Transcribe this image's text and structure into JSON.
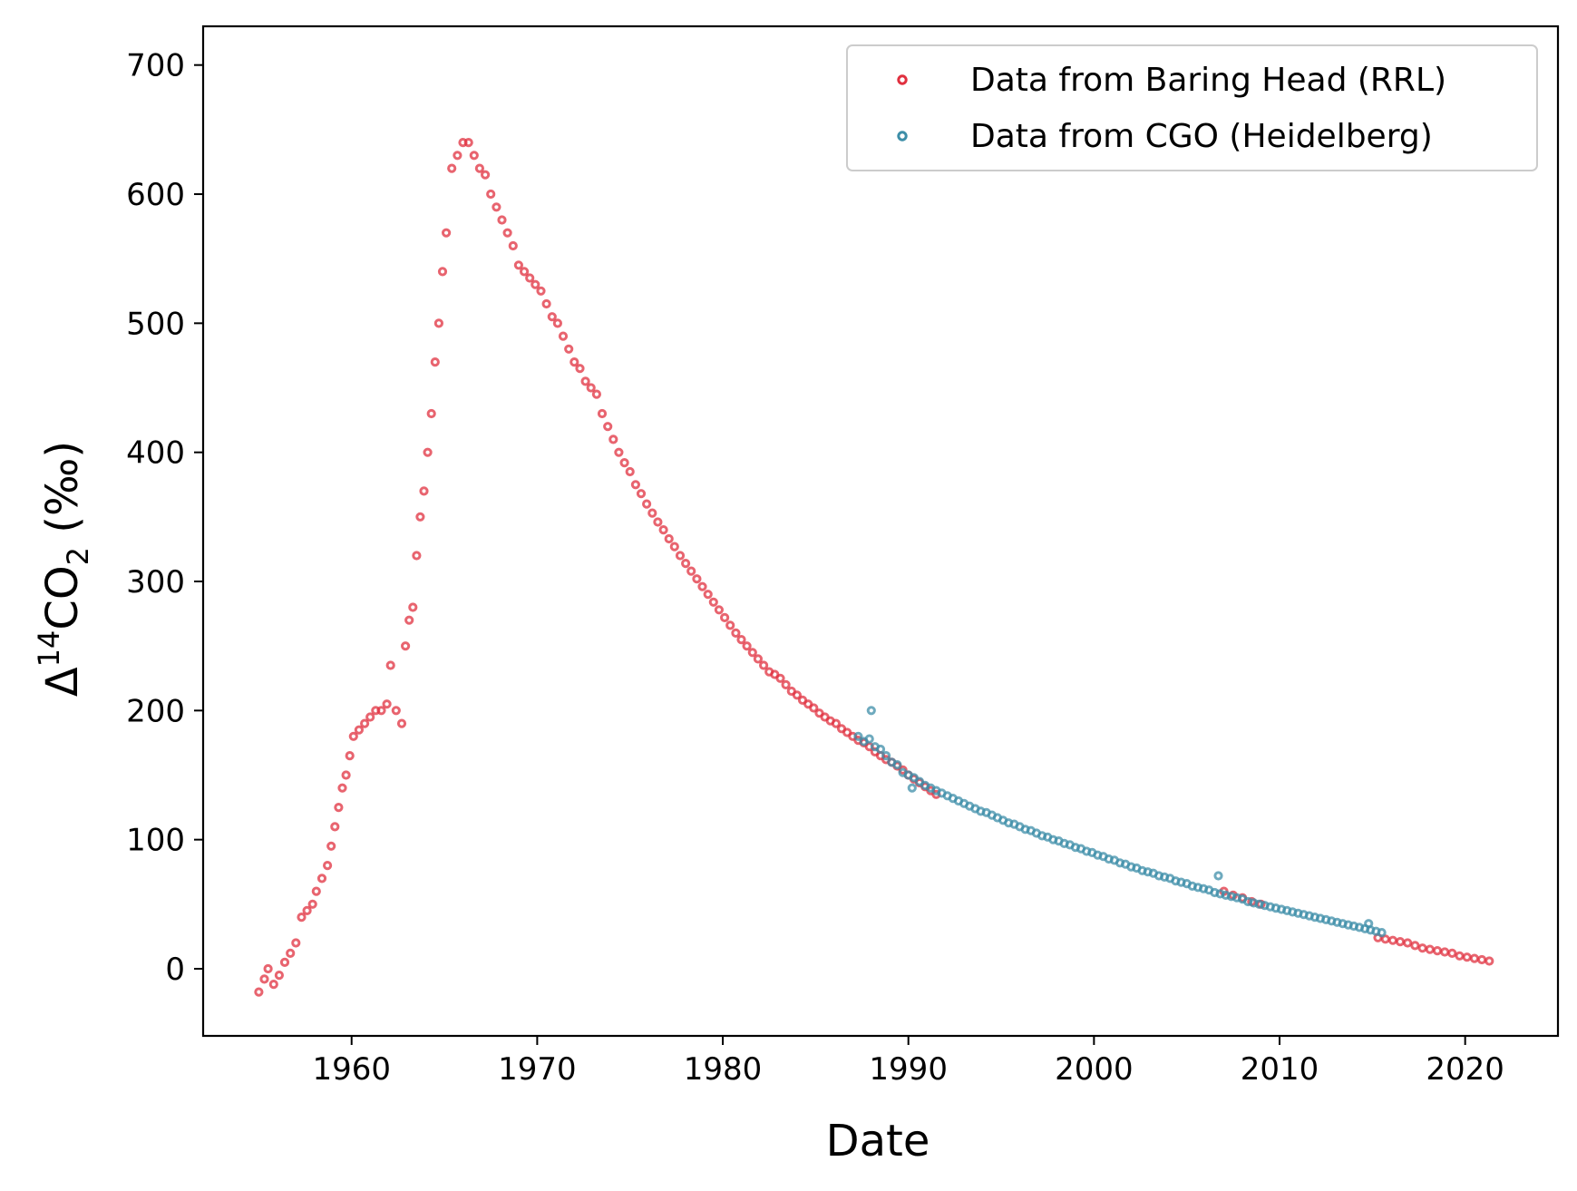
{
  "chart_data": {
    "type": "scatter",
    "title": "",
    "xlabel": "Date",
    "ylabel": {
      "prefix": "Δ",
      "sup": "14",
      "main": "CO",
      "sub": "2",
      "suffix": " (‰)"
    },
    "xlim": [
      1952,
      2025
    ],
    "ylim": [
      -52,
      730
    ],
    "xticks": [
      1960,
      1970,
      1980,
      1990,
      2000,
      2010,
      2020
    ],
    "yticks": [
      0,
      100,
      200,
      300,
      400,
      500,
      600,
      700
    ],
    "grid": false,
    "legend_position": "top-right",
    "series": [
      {
        "name": "Data from Baring Head (RRL)",
        "color": "#e0303f",
        "x": [
          1955.0,
          1955.3,
          1955.5,
          1955.8,
          1956.1,
          1956.4,
          1956.7,
          1957.0,
          1957.3,
          1957.6,
          1957.9,
          1958.1,
          1958.4,
          1958.7,
          1958.9,
          1959.1,
          1959.3,
          1959.5,
          1959.7,
          1959.9,
          1960.1,
          1960.4,
          1960.7,
          1961.0,
          1961.3,
          1961.6,
          1961.9,
          1962.1,
          1962.4,
          1962.7,
          1962.9,
          1963.1,
          1963.3,
          1963.5,
          1963.7,
          1963.9,
          1964.1,
          1964.3,
          1964.5,
          1964.7,
          1964.9,
          1965.1,
          1965.4,
          1965.7,
          1966.0,
          1966.3,
          1966.6,
          1966.9,
          1967.2,
          1967.5,
          1967.8,
          1968.1,
          1968.4,
          1968.7,
          1969.0,
          1969.3,
          1969.6,
          1969.9,
          1970.2,
          1970.5,
          1970.8,
          1971.1,
          1971.4,
          1971.7,
          1972.0,
          1972.3,
          1972.6,
          1972.9,
          1973.2,
          1973.5,
          1973.8,
          1974.1,
          1974.4,
          1974.7,
          1975.0,
          1975.3,
          1975.6,
          1975.9,
          1976.2,
          1976.5,
          1976.8,
          1977.1,
          1977.4,
          1977.7,
          1978.0,
          1978.3,
          1978.6,
          1978.9,
          1979.2,
          1979.5,
          1979.8,
          1980.1,
          1980.4,
          1980.7,
          1981.0,
          1981.3,
          1981.6,
          1981.9,
          1982.2,
          1982.5,
          1982.8,
          1983.1,
          1983.4,
          1983.7,
          1984.0,
          1984.3,
          1984.6,
          1984.9,
          1985.2,
          1985.5,
          1985.8,
          1986.1,
          1986.4,
          1986.7,
          1987.0,
          1987.3,
          1987.6,
          1987.9,
          1988.2,
          1988.5,
          1988.8,
          1989.1,
          1989.4,
          1989.7,
          1990.0,
          1990.3,
          1990.6,
          1990.9,
          1991.2,
          1991.5,
          2007.0,
          2007.5,
          2008.0,
          2008.5,
          2009.0,
          2015.3,
          2015.7,
          2016.1,
          2016.5,
          2016.9,
          2017.3,
          2017.7,
          2018.1,
          2018.5,
          2018.9,
          2019.3,
          2019.7,
          2020.1,
          2020.5,
          2020.9,
          2021.3
        ],
        "y": [
          -18,
          -8,
          0,
          -12,
          -5,
          5,
          12,
          20,
          40,
          45,
          50,
          60,
          70,
          80,
          95,
          110,
          125,
          140,
          150,
          165,
          180,
          185,
          190,
          195,
          200,
          200,
          205,
          235,
          200,
          190,
          250,
          270,
          280,
          320,
          350,
          370,
          400,
          430,
          470,
          500,
          540,
          570,
          620,
          630,
          640,
          640,
          630,
          620,
          615,
          600,
          590,
          580,
          570,
          560,
          545,
          540,
          535,
          530,
          525,
          515,
          505,
          500,
          490,
          480,
          470,
          465,
          455,
          450,
          445,
          430,
          420,
          410,
          400,
          392,
          385,
          375,
          368,
          360,
          353,
          346,
          340,
          333,
          327,
          320,
          314,
          308,
          302,
          296,
          290,
          284,
          278,
          272,
          266,
          260,
          255,
          250,
          245,
          240,
          235,
          230,
          228,
          225,
          220,
          215,
          212,
          208,
          205,
          202,
          198,
          195,
          192,
          190,
          186,
          183,
          180,
          177,
          175,
          172,
          168,
          165,
          162,
          160,
          157,
          154,
          150,
          147,
          144,
          141,
          138,
          135,
          60,
          57,
          55,
          52,
          50,
          24,
          23,
          22,
          21,
          20,
          18,
          16,
          15,
          14,
          13,
          12,
          10,
          9,
          8,
          7,
          6
        ]
      },
      {
        "name": "Data from CGO (Heidelberg)",
        "color": "#3d8ea8",
        "x": [
          1987.3,
          1987.6,
          1987.9,
          1988.2,
          1988.5,
          1988.8,
          1989.1,
          1989.4,
          1989.7,
          1990.0,
          1990.3,
          1990.6,
          1990.9,
          1991.2,
          1991.5,
          1991.8,
          1992.1,
          1992.4,
          1992.7,
          1993.0,
          1993.3,
          1993.6,
          1993.9,
          1994.2,
          1994.5,
          1994.8,
          1995.1,
          1995.4,
          1995.7,
          1996.0,
          1996.3,
          1996.6,
          1996.9,
          1997.2,
          1997.5,
          1997.8,
          1998.1,
          1998.4,
          1998.7,
          1999.0,
          1999.3,
          1999.6,
          1999.9,
          2000.2,
          2000.5,
          2000.8,
          2001.1,
          2001.4,
          2001.7,
          2002.0,
          2002.3,
          2002.6,
          2002.9,
          2003.2,
          2003.5,
          2003.8,
          2004.1,
          2004.4,
          2004.7,
          2005.0,
          2005.3,
          2005.6,
          2005.9,
          2006.2,
          2006.5,
          2006.8,
          2007.1,
          2007.4,
          2007.7,
          2008.0,
          2008.3,
          2008.6,
          2008.9,
          2009.2,
          2009.5,
          2009.8,
          2010.1,
          2010.4,
          2010.7,
          2011.0,
          2011.3,
          2011.6,
          2011.9,
          2012.2,
          2012.5,
          2012.8,
          2013.1,
          2013.4,
          2013.7,
          2014.0,
          2014.3,
          2014.6,
          2014.9,
          2015.2,
          2015.5,
          1988.0,
          1990.2,
          2006.7,
          2014.8
        ],
        "y": [
          180,
          176,
          178,
          172,
          170,
          165,
          160,
          158,
          152,
          150,
          148,
          145,
          142,
          140,
          138,
          136,
          134,
          132,
          130,
          128,
          126,
          124,
          122,
          121,
          119,
          117,
          115,
          113,
          112,
          110,
          108,
          107,
          105,
          103,
          102,
          100,
          99,
          97,
          96,
          94,
          93,
          91,
          90,
          88,
          87,
          85,
          84,
          82,
          81,
          79,
          78,
          76,
          75,
          74,
          72,
          71,
          70,
          68,
          67,
          66,
          64,
          63,
          62,
          61,
          59,
          58,
          57,
          56,
          55,
          54,
          52,
          51,
          50,
          49,
          48,
          47,
          46,
          45,
          44,
          43,
          42,
          41,
          40,
          39,
          38,
          37,
          36,
          35,
          34,
          33,
          32,
          31,
          30,
          29,
          28,
          200,
          140,
          72,
          35
        ]
      }
    ]
  }
}
